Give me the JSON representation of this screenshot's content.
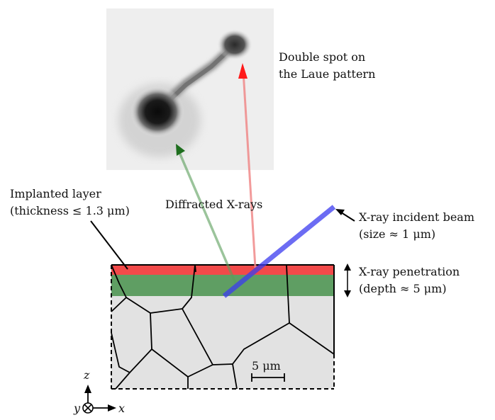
{
  "labels": {
    "double_spot_line1": "Double spot on",
    "double_spot_line2": "the Laue pattern",
    "implanted_line1": "Implanted layer",
    "implanted_line2": "(thickness ≤ 1.3 μm)",
    "diffracted": "Diffracted X-rays",
    "incident_line1": "X-ray incident beam",
    "incident_line2": "(size ≈ 1 μm)",
    "penetration_line1": "X-ray penetration",
    "penetration_line2": "(depth ≈ 5 μm)",
    "scale_bar": "5 μm"
  },
  "axes": {
    "z": "z",
    "x": "x",
    "y": "y"
  },
  "colors": {
    "implanted_layer": "#f24a4a",
    "penetration_zone": "#5f9e63",
    "sample_fill": "#e2e2e2",
    "incident_beam": "#4a4af0",
    "diffracted_green": "#5a9e5a",
    "diffracted_red": "#f08a8a",
    "arrow_red": "#ff1a1a",
    "arrow_green": "#1e6e1e"
  },
  "icons": {
    "laue_pattern": "laue-pattern-image",
    "axes": "axes-triad-icon"
  }
}
